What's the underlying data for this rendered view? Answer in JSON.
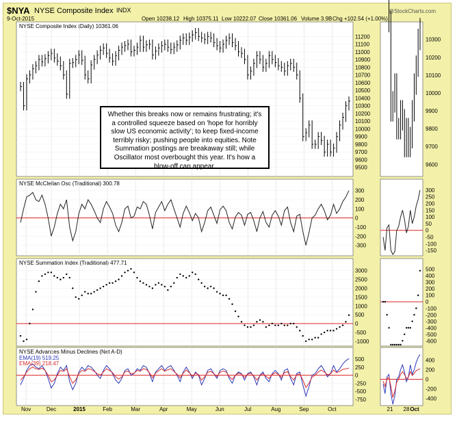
{
  "header": {
    "symbol": "$NYA",
    "name": "NYSE Composite Index",
    "exchange": "INDX",
    "date": "9-Oct-2015",
    "open": "Open 10238.12",
    "high": "High 10375.11",
    "low": "Low 10222.07",
    "close": "Close 10361.06",
    "volume": "Volume 3.9B",
    "change": "Chg +102.54 (+1.00%)",
    "brand": "@StockCharts.com"
  },
  "annotation": "Whether this breaks now or remains frustrating; it's a controlled squeeze based on 'hope for horribly slow US economic activity'; to keep fixed-income terribly risky; pushing  people into equities. Note Summation postings are breakaway still; while Oscillator most overbought this year. It's how a blow-off can appear.",
  "x_axis": {
    "months": [
      "Nov",
      "Dec",
      "2015",
      "Feb",
      "Mar",
      "Apr",
      "May",
      "Jun",
      "Jul",
      "Aug",
      "Sep",
      "Oct"
    ],
    "zoom_ticks": [
      "21",
      "28",
      "Oct"
    ]
  },
  "panels": [
    {
      "label": "NYSE Composite Index (Daily) 10361.06"
    },
    {
      "label": "NYSE McClellan Osc (Traditional) 300.78"
    },
    {
      "label": "NYSE Summation Index (Traditional) 477.71"
    },
    {
      "label": "NYSE Advances Minus Declines (Net A-D)"
    }
  ],
  "chart_data": [
    {
      "type": "ohlc",
      "title": "NYSE Composite Index (Daily) 10361.06",
      "ylim": [
        9400,
        11300
      ],
      "yticks": [
        9500,
        9600,
        9700,
        9800,
        9900,
        10000,
        10100,
        10200,
        10300,
        10400,
        10500,
        10600,
        10700,
        10800,
        10900,
        11000,
        11100,
        11200
      ],
      "zoom_yticks": [
        9600,
        9700,
        9800,
        9900,
        10000,
        10100,
        10200,
        10300
      ],
      "months": [
        "Nov",
        "Dec",
        "2015",
        "Feb",
        "Mar",
        "Apr",
        "May",
        "Jun",
        "Jul",
        "Aug",
        "Sep",
        "Oct"
      ],
      "month_x": [
        0.1,
        1.0,
        2.0,
        3.0,
        4.0,
        5.0,
        6.0,
        7.0,
        8.0,
        9.0,
        10.0,
        11.0
      ],
      "closes": [
        10550,
        10300,
        10650,
        10700,
        10780,
        10820,
        10900,
        10870,
        10910,
        10950,
        10980,
        10920,
        10880,
        10820,
        10700,
        10450,
        10850,
        10860,
        10900,
        10960,
        10890,
        10700,
        10650,
        10830,
        10900,
        10960,
        11020,
        11050,
        10980,
        10920,
        10880,
        10950,
        11020,
        11060,
        11080,
        11100,
        11000,
        11020,
        11060,
        11150,
        11060,
        11090,
        11100,
        10960,
        11010,
        11050,
        11080,
        11100,
        11060,
        11030,
        11060,
        11090,
        11150,
        11180,
        11150,
        11190,
        11220,
        11250,
        11200,
        11180,
        11160,
        11200,
        11180,
        11120,
        11080,
        11050,
        11100,
        11150,
        11180,
        11120,
        11080,
        11000,
        10980,
        10900,
        10700,
        10750,
        10850,
        10950,
        10900,
        10800,
        10850,
        10950,
        10900,
        10860,
        10820,
        10800,
        10750,
        10820,
        10850,
        10800,
        10700,
        10400,
        9900,
        9950,
        10050,
        9800,
        9800,
        9900,
        9850,
        9700,
        9800,
        9700,
        9750,
        9900,
        10050,
        10150,
        10300,
        10361
      ]
    },
    {
      "type": "line",
      "title": "NYSE McClellan Osc (Traditional) 300.78",
      "ylim": [
        -400,
        350
      ],
      "yticks": [
        -300,
        -200,
        -100,
        0,
        100,
        200,
        300
      ],
      "zoom_yticks": [
        -150,
        -100,
        -50,
        0,
        50,
        100,
        150,
        200,
        250,
        300
      ],
      "values": [
        -50,
        100,
        230,
        250,
        280,
        200,
        180,
        250,
        150,
        0,
        -200,
        -100,
        50,
        150,
        100,
        200,
        -100,
        -250,
        -150,
        50,
        150,
        100,
        200,
        150,
        80,
        0,
        -50,
        100,
        180,
        120,
        50,
        -80,
        -150,
        -50,
        100,
        130,
        0,
        20,
        120,
        100,
        180,
        150,
        30,
        -120,
        60,
        120,
        180,
        80,
        150,
        200,
        100,
        0,
        -100,
        50,
        130,
        60,
        -30,
        50,
        0,
        -150,
        -50,
        80,
        120,
        30,
        -60,
        90,
        130,
        80,
        -50,
        -120,
        10,
        60,
        30,
        -80,
        40,
        60,
        -30,
        -150,
        0,
        70,
        -50,
        -100,
        30,
        80,
        20,
        -80,
        80,
        120,
        -50,
        -150,
        20,
        40,
        -150,
        -300,
        -160,
        0,
        30,
        100,
        150,
        80,
        -20,
        30,
        150,
        50,
        100,
        180,
        230,
        300
      ]
    },
    {
      "type": "scatter",
      "title": "NYSE Summation Index (Traditional) 477.71",
      "ylim": [
        -1200,
        3300
      ],
      "yticks": [
        -1000,
        -500,
        0,
        500,
        1000,
        1500,
        2000,
        2500,
        3000
      ],
      "zoom_yticks": [
        -600,
        -500,
        -400,
        -300,
        -200,
        -100,
        0,
        100,
        200,
        300,
        400,
        500
      ],
      "values": [
        -700,
        -1000,
        -900,
        0,
        800,
        1800,
        2400,
        2700,
        2800,
        2900,
        2900,
        2700,
        2600,
        2500,
        2600,
        2800,
        2600,
        2000,
        1500,
        1400,
        1600,
        1800,
        1700,
        1700,
        1800,
        1900,
        2000,
        2100,
        2200,
        2300,
        2300,
        2400,
        2500,
        2700,
        2900,
        3000,
        3100,
        2900,
        2600,
        2400,
        2300,
        2200,
        2100,
        2000,
        2200,
        2300,
        2200,
        2100,
        1900,
        2100,
        2300,
        2600,
        2800,
        2700,
        2600,
        2700,
        2900,
        2800,
        2500,
        2300,
        2100,
        2000,
        2100,
        2000,
        1800,
        1700,
        1600,
        1600,
        1400,
        1100,
        700,
        400,
        100,
        -100,
        -200,
        -200,
        -100,
        100,
        200,
        100,
        -200,
        -100,
        0,
        -100,
        -100,
        0,
        -100,
        -100,
        0,
        0,
        -200,
        -400,
        -700,
        -1000,
        -900,
        -900,
        -800,
        -800,
        -600,
        -500,
        -400,
        -400,
        -400,
        -300,
        -200,
        -100,
        100,
        478
      ]
    },
    {
      "type": "line",
      "title": "NYSE Advances Minus Declines (Net A-D)",
      "ylim": [
        -900,
        650
      ],
      "yticks": [
        -750,
        -500,
        -250,
        0,
        250,
        500
      ],
      "zoom_yticks": [
        -400,
        -200,
        0,
        200,
        400
      ],
      "series": [
        {
          "name": "EMA(19) 519.25",
          "color": "#2c37b8",
          "values": [
            -300,
            -100,
            150,
            300,
            350,
            250,
            200,
            300,
            150,
            -100,
            -400,
            -250,
            50,
            250,
            150,
            300,
            -200,
            -450,
            -250,
            100,
            250,
            150,
            300,
            250,
            150,
            0,
            -100,
            150,
            300,
            200,
            50,
            -150,
            -250,
            -100,
            150,
            200,
            0,
            50,
            200,
            150,
            300,
            250,
            50,
            -200,
            100,
            200,
            300,
            150,
            250,
            300,
            150,
            0,
            -200,
            100,
            250,
            100,
            -100,
            100,
            0,
            -300,
            -100,
            150,
            200,
            50,
            -100,
            150,
            200,
            150,
            -100,
            -250,
            0,
            100,
            50,
            -150,
            50,
            100,
            -50,
            -300,
            0,
            100,
            -100,
            -200,
            50,
            150,
            50,
            -150,
            150,
            200,
            -100,
            -300,
            50,
            100,
            -300,
            -650,
            -350,
            0,
            50,
            200,
            300,
            150,
            -50,
            50,
            300,
            100,
            200,
            350,
            450,
            519
          ]
        },
        {
          "name": "EMA(39) 218.47",
          "color": "#d72a2a",
          "values": [
            -150,
            -50,
            100,
            200,
            250,
            200,
            180,
            220,
            150,
            0,
            -200,
            -150,
            0,
            150,
            120,
            200,
            -50,
            -250,
            -150,
            50,
            150,
            120,
            200,
            180,
            120,
            50,
            0,
            100,
            200,
            150,
            80,
            -50,
            -120,
            -50,
            100,
            130,
            50,
            60,
            150,
            120,
            200,
            180,
            80,
            -80,
            60,
            140,
            200,
            120,
            170,
            200,
            120,
            30,
            -80,
            60,
            160,
            80,
            -30,
            60,
            20,
            -150,
            -50,
            90,
            120,
            50,
            -40,
            90,
            130,
            100,
            -40,
            -130,
            0,
            60,
            30,
            -70,
            30,
            60,
            -20,
            -150,
            -20,
            50,
            -40,
            -100,
            20,
            80,
            30,
            -70,
            80,
            110,
            -40,
            -150,
            10,
            40,
            -150,
            -380,
            -250,
            -60,
            0,
            100,
            160,
            100,
            20,
            40,
            160,
            80,
            120,
            180,
            200,
            218
          ]
        }
      ]
    }
  ]
}
